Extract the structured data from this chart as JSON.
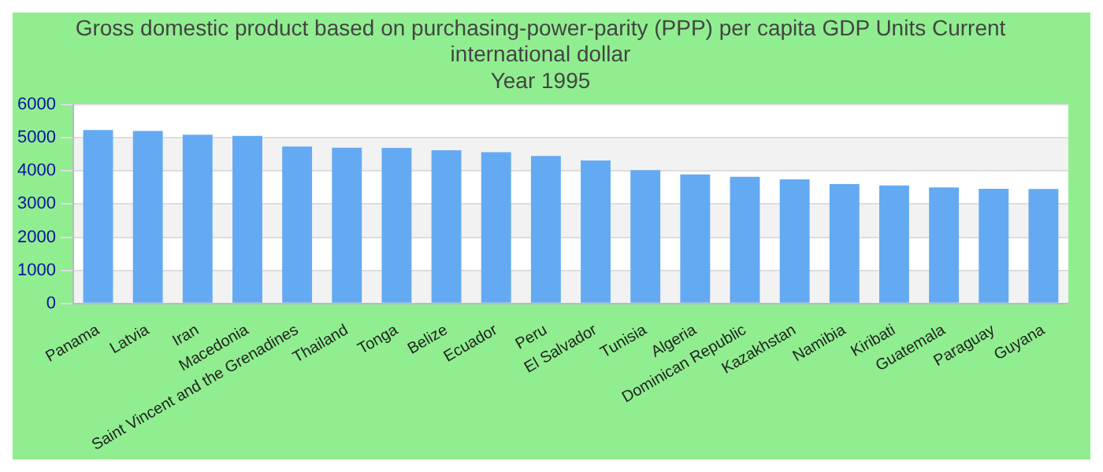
{
  "chart_data": {
    "type": "bar",
    "title": "Gross domestic product based on purchasing-power-parity (PPP) per capita GDP Units Current international dollar",
    "subtitle": "Year 1995",
    "categories": [
      "Panama",
      "Latvia",
      "Iran",
      "Macedonia",
      "Saint Vincent and the Grenadines",
      "Thailand",
      "Tonga",
      "Belize",
      "Ecuador",
      "Peru",
      "El Salvador",
      "Tunisia",
      "Algeria",
      "Dominican Republic",
      "Kazakhstan",
      "Namibia",
      "Kiribati",
      "Guatemala",
      "Paraguay",
      "Guyana"
    ],
    "values": [
      5230,
      5200,
      5090,
      5050,
      4730,
      4700,
      4690,
      4620,
      4560,
      4450,
      4310,
      4020,
      3890,
      3820,
      3740,
      3600,
      3560,
      3500,
      3460,
      3450
    ],
    "color": "#64aaf2",
    "ylim": [
      0,
      6000
    ],
    "yticks": [
      0,
      1000,
      2000,
      3000,
      4000,
      5000,
      6000
    ],
    "grid": "y"
  }
}
